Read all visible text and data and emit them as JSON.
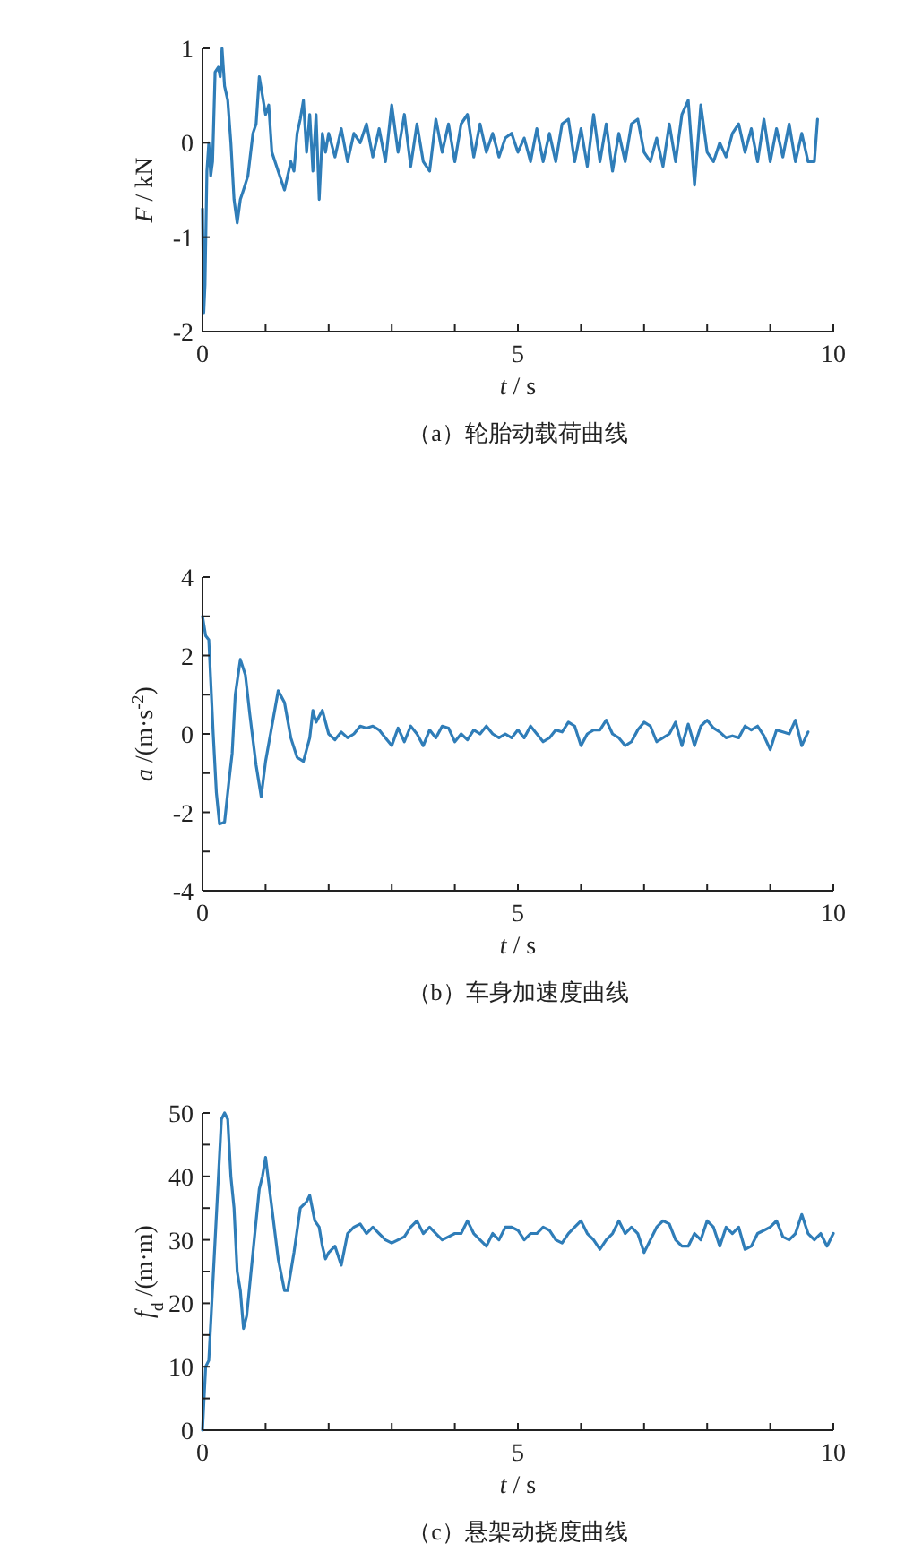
{
  "chart_data": [
    {
      "type": "line",
      "title": "（a）轮胎动载荷曲线",
      "xlabel": "*t* / s",
      "ylabel": "*F* / kN",
      "xlim": [
        0,
        10
      ],
      "ylim": [
        -2,
        1
      ],
      "xticks": [
        0,
        {
          "value": 1,
          "label": null
        },
        {
          "value": 2,
          "label": null
        },
        {
          "value": 3,
          "label": null
        },
        {
          "value": 4,
          "label": null
        },
        5,
        {
          "value": 6,
          "label": null
        },
        {
          "value": 7,
          "label": null
        },
        {
          "value": 8,
          "label": null
        },
        {
          "value": 9,
          "label": null
        },
        10
      ],
      "yticks": [
        -2,
        -1,
        0,
        1
      ],
      "series": [
        {
          "color": "#2f7db8",
          "x": [
            0,
            0.02,
            0.04,
            0.07,
            0.1,
            0.13,
            0.16,
            0.2,
            0.25,
            0.28,
            0.31,
            0.35,
            0.4,
            0.45,
            0.5,
            0.55,
            0.6,
            0.65,
            0.72,
            0.8,
            0.85,
            0.9,
            0.95,
            1.0,
            1.05,
            1.1,
            1.2,
            1.3,
            1.4,
            1.45,
            1.5,
            1.55,
            1.6,
            1.65,
            1.7,
            1.75,
            1.8,
            1.85,
            1.9,
            1.95,
            2.0,
            2.1,
            2.2,
            2.3,
            2.4,
            2.5,
            2.6,
            2.7,
            2.8,
            2.9,
            3.0,
            3.1,
            3.2,
            3.3,
            3.4,
            3.5,
            3.6,
            3.7,
            3.8,
            3.9,
            4.0,
            4.1,
            4.2,
            4.3,
            4.4,
            4.5,
            4.6,
            4.7,
            4.8,
            4.9,
            5.0,
            5.1,
            5.2,
            5.3,
            5.4,
            5.5,
            5.6,
            5.7,
            5.8,
            5.9,
            6.0,
            6.1,
            6.2,
            6.3,
            6.4,
            6.5,
            6.6,
            6.7,
            6.8,
            6.9,
            7.0,
            7.1,
            7.2,
            7.3,
            7.4,
            7.5,
            7.6,
            7.7,
            7.8,
            7.9,
            8.0,
            8.1,
            8.2,
            8.3,
            8.4,
            8.5,
            8.6,
            8.7,
            8.8,
            8.9,
            9.0,
            9.1,
            9.2,
            9.3,
            9.4,
            9.5,
            9.6,
            9.7,
            9.75
          ],
          "values": [
            -0.7,
            -1.8,
            -1.5,
            -0.3,
            0.0,
            -0.35,
            -0.2,
            0.75,
            0.8,
            0.7,
            1.0,
            0.6,
            0.45,
            0.0,
            -0.6,
            -0.85,
            -0.6,
            -0.5,
            -0.35,
            0.1,
            0.2,
            0.7,
            0.5,
            0.3,
            0.4,
            -0.1,
            -0.3,
            -0.5,
            -0.2,
            -0.3,
            0.1,
            0.25,
            0.45,
            -0.1,
            0.3,
            -0.3,
            0.3,
            -0.6,
            0.1,
            -0.1,
            0.1,
            -0.15,
            0.15,
            -0.2,
            0.1,
            0.0,
            0.2,
            -0.15,
            0.15,
            -0.2,
            0.4,
            -0.1,
            0.3,
            -0.25,
            0.2,
            -0.2,
            -0.3,
            0.25,
            -0.1,
            0.2,
            -0.2,
            0.2,
            0.3,
            -0.15,
            0.2,
            -0.1,
            0.1,
            -0.15,
            0.05,
            0.1,
            -0.1,
            0.05,
            -0.2,
            0.15,
            -0.2,
            0.1,
            -0.2,
            0.2,
            0.25,
            -0.2,
            0.15,
            -0.25,
            0.3,
            -0.2,
            0.2,
            -0.3,
            0.1,
            -0.2,
            0.2,
            0.25,
            -0.1,
            -0.2,
            0.05,
            -0.25,
            0.2,
            -0.2,
            0.3,
            0.45,
            -0.45,
            0.4,
            -0.1,
            -0.2,
            0.0,
            -0.15,
            0.1,
            0.2,
            -0.1,
            0.15,
            -0.2,
            0.25,
            -0.2,
            0.15,
            -0.15,
            0.2,
            -0.2,
            0.1,
            -0.2,
            -0.2,
            0.25
          ]
        }
      ]
    },
    {
      "type": "line",
      "title": "（b）车身加速度曲线",
      "xlabel": "*t* / s",
      "ylabel": "*a* /(m·s$^{-2}$)",
      "xlim": [
        0,
        10
      ],
      "ylim": [
        -4,
        4
      ],
      "xticks": [
        0,
        {
          "value": 1,
          "label": null
        },
        {
          "value": 2,
          "label": null
        },
        {
          "value": 3,
          "label": null
        },
        {
          "value": 4,
          "label": null
        },
        5,
        {
          "value": 6,
          "label": null
        },
        {
          "value": 7,
          "label": null
        },
        {
          "value": 8,
          "label": null
        },
        {
          "value": 9,
          "label": null
        },
        10
      ],
      "yticks": [
        -4,
        {
          "value": -3,
          "label": null
        },
        -2,
        {
          "value": -1,
          "label": null
        },
        0,
        {
          "value": 1,
          "label": null
        },
        2,
        {
          "value": 3,
          "label": null
        },
        4
      ],
      "series": [
        {
          "color": "#2f7db8",
          "x": [
            0,
            0.05,
            0.1,
            0.17,
            0.22,
            0.27,
            0.35,
            0.42,
            0.47,
            0.52,
            0.6,
            0.68,
            0.75,
            0.85,
            0.93,
            1.0,
            1.1,
            1.2,
            1.3,
            1.4,
            1.5,
            1.6,
            1.7,
            1.75,
            1.8,
            1.9,
            2.0,
            2.1,
            2.2,
            2.3,
            2.4,
            2.5,
            2.6,
            2.7,
            2.8,
            2.9,
            3.0,
            3.1,
            3.2,
            3.3,
            3.4,
            3.5,
            3.6,
            3.7,
            3.8,
            3.9,
            4.0,
            4.1,
            4.2,
            4.3,
            4.4,
            4.5,
            4.6,
            4.7,
            4.8,
            4.9,
            5.0,
            5.1,
            5.2,
            5.3,
            5.4,
            5.5,
            5.6,
            5.7,
            5.8,
            5.9,
            6.0,
            6.1,
            6.2,
            6.3,
            6.4,
            6.5,
            6.6,
            6.7,
            6.8,
            6.9,
            7.0,
            7.1,
            7.2,
            7.3,
            7.4,
            7.5,
            7.6,
            7.7,
            7.8,
            7.9,
            8.0,
            8.1,
            8.2,
            8.3,
            8.4,
            8.5,
            8.6,
            8.7,
            8.8,
            8.9,
            9.0,
            9.1,
            9.2,
            9.3,
            9.4,
            9.5,
            9.6
          ],
          "values": [
            3.0,
            2.5,
            2.4,
            0.0,
            -1.5,
            -2.3,
            -2.25,
            -1.2,
            -0.5,
            1.0,
            1.9,
            1.5,
            0.5,
            -0.8,
            -1.6,
            -0.7,
            0.2,
            1.1,
            0.8,
            -0.1,
            -0.6,
            -0.7,
            -0.1,
            0.6,
            0.3,
            0.6,
            0.0,
            -0.15,
            0.05,
            -0.1,
            0.0,
            0.2,
            0.15,
            0.2,
            0.1,
            -0.1,
            -0.3,
            0.15,
            -0.2,
            0.2,
            0.0,
            -0.3,
            0.1,
            -0.1,
            0.2,
            0.15,
            -0.2,
            0.0,
            -0.15,
            0.1,
            0.0,
            0.2,
            0.0,
            -0.1,
            0.0,
            -0.1,
            0.1,
            -0.1,
            0.2,
            0.0,
            -0.2,
            -0.1,
            0.1,
            0.05,
            0.3,
            0.2,
            -0.3,
            0.0,
            0.1,
            0.1,
            0.35,
            0.0,
            -0.1,
            -0.3,
            -0.2,
            0.1,
            0.3,
            0.2,
            -0.2,
            -0.1,
            0.0,
            0.3,
            -0.3,
            0.25,
            -0.3,
            0.2,
            0.35,
            0.15,
            0.05,
            -0.1,
            -0.05,
            -0.1,
            0.2,
            0.1,
            0.2,
            -0.05,
            -0.4,
            0.1,
            0.05,
            0.0,
            0.35,
            -0.3,
            0.05
          ]
        }
      ]
    },
    {
      "type": "line",
      "title": "（c）悬架动挠度曲线",
      "xlabel": "*t* / s",
      "ylabel": "*f*$_{d}$ /(m·m)",
      "xlim": [
        0,
        10
      ],
      "ylim": [
        0,
        50
      ],
      "xticks": [
        0,
        {
          "value": 1,
          "label": null
        },
        {
          "value": 2,
          "label": null
        },
        {
          "value": 3,
          "label": null
        },
        {
          "value": 4,
          "label": null
        },
        5,
        {
          "value": 6,
          "label": null
        },
        {
          "value": 7,
          "label": null
        },
        {
          "value": 8,
          "label": null
        },
        {
          "value": 9,
          "label": null
        },
        10
      ],
      "yticks": [
        0,
        {
          "value": 5,
          "label": null
        },
        10,
        {
          "value": 15,
          "label": null
        },
        20,
        {
          "value": 25,
          "label": null
        },
        30,
        {
          "value": 35,
          "label": null
        },
        40,
        {
          "value": 45,
          "label": null
        },
        50
      ],
      "series": [
        {
          "color": "#2f7db8",
          "x": [
            0,
            0.05,
            0.1,
            0.2,
            0.3,
            0.35,
            0.4,
            0.45,
            0.5,
            0.55,
            0.6,
            0.65,
            0.7,
            0.8,
            0.9,
            0.95,
            1.0,
            1.05,
            1.1,
            1.2,
            1.3,
            1.35,
            1.45,
            1.55,
            1.65,
            1.7,
            1.78,
            1.85,
            1.9,
            1.95,
            2.0,
            2.1,
            2.2,
            2.3,
            2.4,
            2.5,
            2.6,
            2.7,
            2.8,
            2.9,
            3.0,
            3.1,
            3.2,
            3.3,
            3.4,
            3.5,
            3.6,
            3.7,
            3.8,
            3.9,
            4.0,
            4.1,
            4.2,
            4.3,
            4.4,
            4.5,
            4.6,
            4.7,
            4.8,
            4.9,
            5.0,
            5.1,
            5.2,
            5.3,
            5.4,
            5.5,
            5.6,
            5.7,
            5.8,
            5.9,
            6.0,
            6.1,
            6.2,
            6.3,
            6.4,
            6.5,
            6.6,
            6.7,
            6.8,
            6.9,
            7.0,
            7.1,
            7.2,
            7.3,
            7.4,
            7.5,
            7.6,
            7.7,
            7.8,
            7.9,
            8.0,
            8.1,
            8.2,
            8.3,
            8.4,
            8.5,
            8.6,
            8.7,
            8.8,
            8.9,
            9.0,
            9.1,
            9.2,
            9.3,
            9.4,
            9.5,
            9.6,
            9.7,
            9.8,
            9.9,
            10.0
          ],
          "values": [
            0,
            10,
            11,
            30,
            49,
            50,
            49,
            40,
            35,
            25,
            22,
            16,
            18,
            28,
            38,
            40,
            43,
            39,
            35,
            27,
            22,
            22,
            28,
            35,
            36,
            37,
            33,
            32,
            29,
            27,
            28,
            29,
            26,
            31,
            32,
            32.5,
            31,
            32,
            31,
            30,
            29.5,
            30,
            30.5,
            32,
            33,
            31,
            32,
            31,
            30,
            30.5,
            31,
            31,
            33,
            31,
            30,
            29,
            31,
            30,
            32,
            32,
            31.5,
            30,
            31,
            31,
            32,
            31.5,
            30,
            29.5,
            31,
            32,
            33,
            31,
            30,
            28.5,
            30,
            31,
            33,
            31,
            32,
            31,
            28,
            30,
            32,
            33,
            32.5,
            30,
            29,
            29,
            31,
            30,
            33,
            32,
            29,
            32,
            31,
            32,
            28.5,
            29,
            31,
            31.5,
            32,
            33,
            30.5,
            30,
            31,
            34,
            31,
            30,
            31,
            29,
            31
          ]
        }
      ]
    }
  ]
}
